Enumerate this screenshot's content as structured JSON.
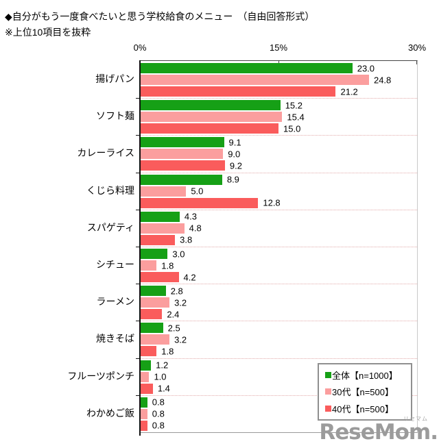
{
  "title": "◆自分がもう一度食べたいと思う学校給食のメニュー　（自由回答形式）",
  "subtitle": "※上位10項目を抜粋",
  "watermark": {
    "text": "ReseMom.",
    "ruby": "リセマム"
  },
  "chart_data": {
    "type": "bar",
    "orientation": "horizontal",
    "title": "自分がもう一度食べたいと思う学校給食のメニュー（自由回答形式）上位10項目",
    "categories": [
      "揚げパン",
      "ソフト麺",
      "カレーライス",
      "くじら料理",
      "スパゲティ",
      "シチュー",
      "ラーメン",
      "焼きそば",
      "フルーツポンチ",
      "わかめご飯"
    ],
    "series": [
      {
        "name": "全体【n=1000】",
        "color": "#16A016",
        "values": [
          23.0,
          15.2,
          9.1,
          8.9,
          4.3,
          3.0,
          2.8,
          2.5,
          1.2,
          0.8
        ]
      },
      {
        "name": "30代【n=500】",
        "color": "#FB9E9E",
        "values": [
          24.8,
          15.4,
          9.0,
          5.0,
          4.8,
          1.8,
          3.2,
          3.2,
          1.0,
          0.8
        ]
      },
      {
        "name": "40代【n=500】",
        "color": "#FA5C5C",
        "values": [
          21.2,
          15.0,
          9.2,
          12.8,
          3.8,
          4.2,
          2.4,
          1.8,
          1.4,
          0.8
        ]
      }
    ],
    "xlim": [
      0,
      30
    ],
    "x_ticks": [
      {
        "label": "0%",
        "value": 0
      },
      {
        "label": "15%",
        "value": 15
      },
      {
        "label": "30%",
        "value": 30
      }
    ],
    "value_labels": "shown, one decimal",
    "grid": "dotted row separators",
    "legend_position": "bottom-right"
  }
}
